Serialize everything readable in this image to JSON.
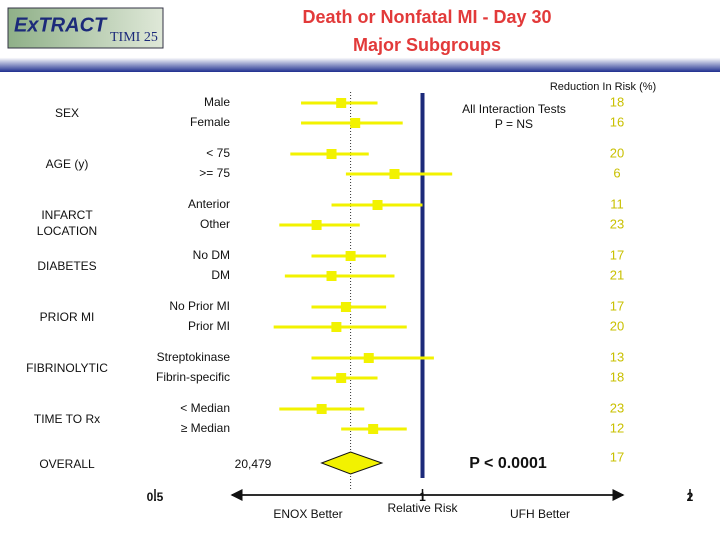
{
  "logo": "ExTRACT",
  "logo_sub": "TIMI 25",
  "chart_data": {
    "type": "forest",
    "title": "Death or Nonfatal MI - Day 30",
    "subtitle": "Major Subgroups",
    "x_label": "Relative Risk",
    "xlim": [
      0.5,
      2
    ],
    "xticks": [
      0.5,
      1,
      2
    ],
    "log_scale": true,
    "color": "#f2f200",
    "reference_color": "#1c2a7a",
    "reduction_header": "Reduction In Risk (%)",
    "interaction_note": [
      "All Interaction Tests",
      "P = NS"
    ],
    "left_note": "ENOX Better",
    "right_note": "UFH Better",
    "groups": [
      {
        "label": "SEX",
        "subgroups": [
          {
            "label": "Male",
            "estimate": 0.81,
            "ci": [
              0.73,
              0.89
            ],
            "reduction": 18
          },
          {
            "label": "Female",
            "estimate": 0.84,
            "ci": [
              0.73,
              0.95
            ],
            "reduction": 16
          }
        ]
      },
      {
        "label": "AGE (y)",
        "subgroups": [
          {
            "label": "< 75",
            "estimate": 0.79,
            "ci": [
              0.71,
              0.87
            ],
            "reduction": 20
          },
          {
            "label": ">= 75",
            "estimate": 0.93,
            "ci": [
              0.82,
              1.08
            ],
            "reduction": 6
          }
        ]
      },
      {
        "label": "INFARCT LOCATION",
        "subgroups": [
          {
            "label": "Anterior",
            "estimate": 0.89,
            "ci": [
              0.79,
              1.0
            ],
            "reduction": 11
          },
          {
            "label": "Other",
            "estimate": 0.76,
            "ci": [
              0.69,
              0.85
            ],
            "reduction": 23
          }
        ]
      },
      {
        "label": "DIABETES",
        "subgroups": [
          {
            "label": "No DM",
            "estimate": 0.83,
            "ci": [
              0.75,
              0.91
            ],
            "reduction": 17
          },
          {
            "label": "DM",
            "estimate": 0.79,
            "ci": [
              0.7,
              0.93
            ],
            "reduction": 21
          }
        ]
      },
      {
        "label": "PRIOR MI",
        "subgroups": [
          {
            "label": "No Prior MI",
            "estimate": 0.82,
            "ci": [
              0.75,
              0.91
            ],
            "reduction": 17
          },
          {
            "label": "Prior MI",
            "estimate": 0.8,
            "ci": [
              0.68,
              0.96
            ],
            "reduction": 20
          }
        ]
      },
      {
        "label": "FIBRINOLYTIC",
        "subgroups": [
          {
            "label": "Streptokinase",
            "estimate": 0.87,
            "ci": [
              0.75,
              1.03
            ],
            "reduction": 13
          },
          {
            "label": "Fibrin-specific",
            "estimate": 0.81,
            "ci": [
              0.75,
              0.89
            ],
            "reduction": 18
          }
        ]
      },
      {
        "label": "TIME TO Rx",
        "subgroups": [
          {
            "label": "< Median",
            "estimate": 0.77,
            "ci": [
              0.69,
              0.86
            ],
            "reduction": 23
          },
          {
            "label": "≥ Median",
            "estimate": 0.88,
            "ci": [
              0.81,
              0.96
            ],
            "reduction": 12
          }
        ]
      }
    ],
    "overall": {
      "label": "OVERALL",
      "n": "20,479",
      "estimate": 0.83,
      "ci": [
        0.77,
        0.9
      ],
      "reduction": 17,
      "p": "P < 0.0001"
    }
  }
}
